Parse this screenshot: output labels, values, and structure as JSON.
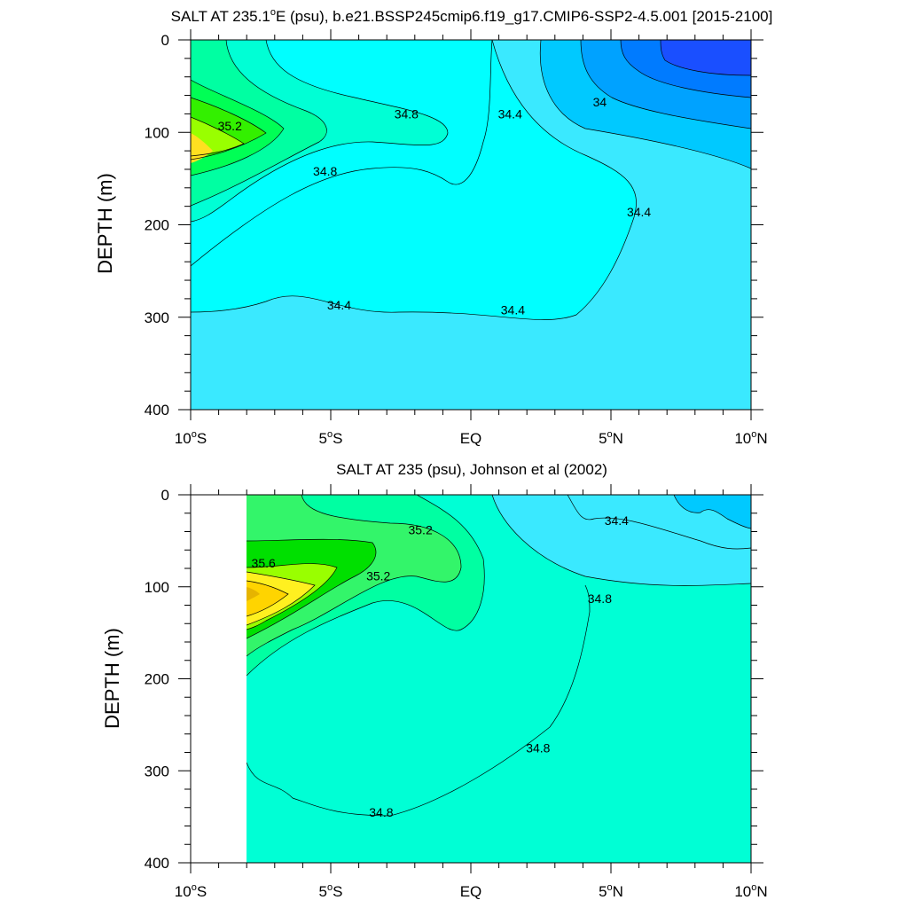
{
  "chart_data": [
    {
      "type": "contour",
      "title": "SALT AT 235.1°E (psu), b.e21.BSSP245cmip6.f19_g17.CMIP6-SSP2-4.5.001 [2015-2100]",
      "title_pre": "SALT AT 235.1",
      "title_sup": "o",
      "title_post": "E (psu), b.e21.BSSP245cmip6.f19_g17.CMIP6-SSP2-4.5.001 [2015-2100]",
      "ylabel": "DEPTH (m)",
      "xlim": [
        -10,
        10
      ],
      "ylim": [
        400,
        0
      ],
      "y_reversed": true,
      "contour_interval": 0.2,
      "colors": [
        "#1a4fff",
        "#007bff",
        "#00a2ff",
        "#00c9ff",
        "#3ae9ff",
        "#00ffff",
        "#00ffd5",
        "#00ffa2",
        "#00ff55",
        "#00e000",
        "#33f000",
        "#99ff00",
        "#ffe020"
      ],
      "contour_labels": [
        {
          "text": "35.2",
          "x": -8.6,
          "y": 93
        },
        {
          "text": "34.8",
          "x": -5.2,
          "y": 142
        },
        {
          "text": "34.8",
          "x": -2.3,
          "y": 80
        },
        {
          "text": "34.4",
          "x": 1.4,
          "y": 80
        },
        {
          "text": "34",
          "x": 4.6,
          "y": 67
        },
        {
          "text": "34.4",
          "x": 6.0,
          "y": 186
        },
        {
          "text": "34.4",
          "x": -4.7,
          "y": 287
        },
        {
          "text": "34.4",
          "x": 1.5,
          "y": 292
        }
      ],
      "x_ticks": [
        {
          "value": -10,
          "pre": "10",
          "post": "S",
          "sup": "o"
        },
        {
          "value": -5,
          "pre": "5",
          "post": "S",
          "sup": "o"
        },
        {
          "value": 0,
          "pre": "EQ",
          "post": "",
          "sup": ""
        },
        {
          "value": 5,
          "pre": "5",
          "post": "N",
          "sup": "o"
        },
        {
          "value": 10,
          "pre": "10",
          "post": "N",
          "sup": "o"
        }
      ],
      "y_ticks": [
        0,
        100,
        200,
        300,
        400
      ]
    },
    {
      "type": "contour",
      "title": "SALT AT 235 (psu), Johnson et al (2002)",
      "title_pre": "SALT AT 235 (psu), Johnson et al (2002)",
      "title_sup": "",
      "title_post": "",
      "ylabel": "DEPTH (m)",
      "xlim": [
        -10,
        10
      ],
      "ylim": [
        400,
        0
      ],
      "y_reversed": true,
      "data_xrange": [
        -8,
        10
      ],
      "contour_interval": 0.2,
      "colors": [
        "#00c9ff",
        "#3ae9ff",
        "#00ffd5",
        "#00ffa2",
        "#33f56a",
        "#00e000",
        "#00f020",
        "#99ff00",
        "#fff020",
        "#ffd400",
        "#e6b400"
      ],
      "contour_labels": [
        {
          "text": "35.6",
          "x": -7.4,
          "y": 74
        },
        {
          "text": "35.2",
          "x": -1.8,
          "y": 38
        },
        {
          "text": "35.2",
          "x": -3.3,
          "y": 88
        },
        {
          "text": "34.4",
          "x": 5.2,
          "y": 28
        },
        {
          "text": "34.8",
          "x": 4.6,
          "y": 113
        },
        {
          "text": "34.8",
          "x": 2.4,
          "y": 275
        },
        {
          "text": "34.8",
          "x": -3.2,
          "y": 345
        }
      ],
      "x_ticks": [
        {
          "value": -10,
          "pre": "10",
          "post": "S",
          "sup": "o"
        },
        {
          "value": -5,
          "pre": "5",
          "post": "S",
          "sup": "o"
        },
        {
          "value": 0,
          "pre": "EQ",
          "post": "",
          "sup": ""
        },
        {
          "value": 5,
          "pre": "5",
          "post": "N",
          "sup": "o"
        },
        {
          "value": 10,
          "pre": "10",
          "post": "N",
          "sup": "o"
        }
      ],
      "y_ticks": [
        0,
        100,
        200,
        300,
        400
      ]
    }
  ]
}
